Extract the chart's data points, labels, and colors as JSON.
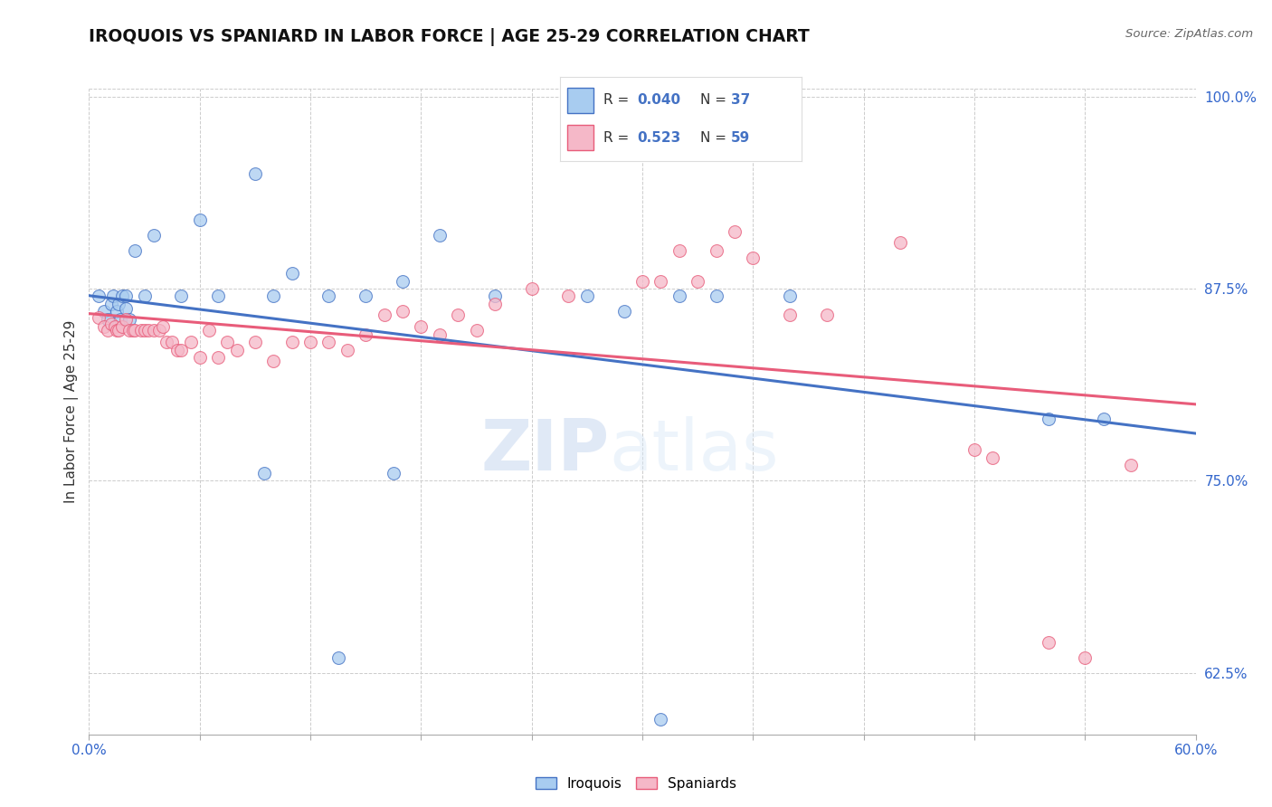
{
  "title": "IROQUOIS VS SPANIARD IN LABOR FORCE | AGE 25-29 CORRELATION CHART",
  "source_text": "Source: ZipAtlas.com",
  "ylabel": "In Labor Force | Age 25-29",
  "xlim": [
    0.0,
    0.6
  ],
  "ylim": [
    0.585,
    1.005
  ],
  "xticks": [
    0.0,
    0.06,
    0.12,
    0.18,
    0.24,
    0.3,
    0.36,
    0.42,
    0.48,
    0.54,
    0.6
  ],
  "xticklabels": [
    "0.0%",
    "",
    "",
    "",
    "",
    "",
    "",
    "",
    "",
    "",
    "60.0%"
  ],
  "ytick_positions": [
    0.625,
    0.75,
    0.875,
    1.0
  ],
  "ytick_labels": [
    "62.5%",
    "75.0%",
    "87.5%",
    "100.0%"
  ],
  "iroquois_color": "#A8CCF0",
  "spaniard_color": "#F5B8C8",
  "iroquois_line_color": "#4472C4",
  "spaniard_line_color": "#E85C7A",
  "iroquois_R": 0.04,
  "iroquois_N": 37,
  "spaniard_R": 0.523,
  "spaniard_N": 59,
  "watermark_zip": "ZIP",
  "watermark_atlas": "atlas",
  "iroquois_x": [
    0.005,
    0.008,
    0.01,
    0.012,
    0.013,
    0.015,
    0.016,
    0.017,
    0.018,
    0.02,
    0.02,
    0.022,
    0.025,
    0.03,
    0.035,
    0.05,
    0.06,
    0.07,
    0.09,
    0.1,
    0.11,
    0.13,
    0.15,
    0.17,
    0.19,
    0.22,
    0.27,
    0.29,
    0.32,
    0.34,
    0.38,
    0.52,
    0.55,
    0.165,
    0.095,
    0.135,
    0.31
  ],
  "iroquois_y": [
    0.87,
    0.86,
    0.855,
    0.865,
    0.87,
    0.86,
    0.865,
    0.855,
    0.87,
    0.862,
    0.87,
    0.855,
    0.9,
    0.87,
    0.91,
    0.87,
    0.92,
    0.87,
    0.95,
    0.87,
    0.885,
    0.87,
    0.87,
    0.88,
    0.91,
    0.87,
    0.87,
    0.86,
    0.87,
    0.87,
    0.87,
    0.79,
    0.79,
    0.755,
    0.755,
    0.635,
    0.595
  ],
  "spaniard_x": [
    0.005,
    0.008,
    0.01,
    0.012,
    0.014,
    0.015,
    0.016,
    0.018,
    0.02,
    0.022,
    0.024,
    0.025,
    0.028,
    0.03,
    0.032,
    0.035,
    0.038,
    0.04,
    0.042,
    0.045,
    0.048,
    0.05,
    0.055,
    0.06,
    0.065,
    0.07,
    0.075,
    0.08,
    0.09,
    0.1,
    0.11,
    0.12,
    0.13,
    0.14,
    0.15,
    0.16,
    0.17,
    0.18,
    0.19,
    0.2,
    0.21,
    0.22,
    0.24,
    0.26,
    0.3,
    0.31,
    0.32,
    0.33,
    0.34,
    0.35,
    0.36,
    0.38,
    0.4,
    0.44,
    0.48,
    0.49,
    0.52,
    0.54,
    0.565
  ],
  "spaniard_y": [
    0.856,
    0.85,
    0.848,
    0.852,
    0.85,
    0.848,
    0.848,
    0.85,
    0.855,
    0.848,
    0.848,
    0.848,
    0.848,
    0.848,
    0.848,
    0.848,
    0.848,
    0.85,
    0.84,
    0.84,
    0.835,
    0.835,
    0.84,
    0.83,
    0.848,
    0.83,
    0.84,
    0.835,
    0.84,
    0.828,
    0.84,
    0.84,
    0.84,
    0.835,
    0.845,
    0.858,
    0.86,
    0.85,
    0.845,
    0.858,
    0.848,
    0.865,
    0.875,
    0.87,
    0.88,
    0.88,
    0.9,
    0.88,
    0.9,
    0.912,
    0.895,
    0.858,
    0.858,
    0.905,
    0.77,
    0.765,
    0.645,
    0.635,
    0.76
  ]
}
